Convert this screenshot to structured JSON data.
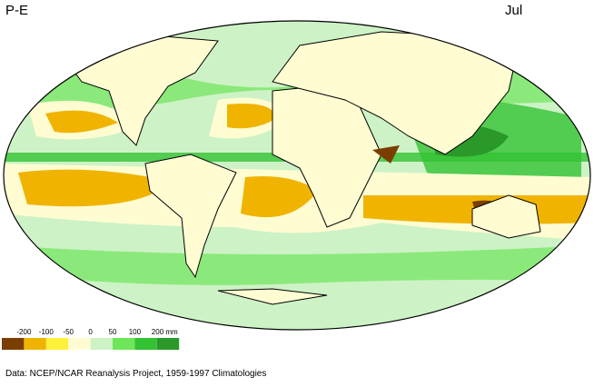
{
  "header": {
    "title": "P-E",
    "month": "Jul"
  },
  "legend": {
    "labels": [
      "-200",
      "-100",
      "-50",
      "0",
      "50",
      "100",
      "200 mm"
    ],
    "colors": [
      "#7a3f00",
      "#f0b400",
      "#fff03a",
      "#fffcd2",
      "#cdf2c6",
      "#6ee65a",
      "#33c233",
      "#2a992a"
    ]
  },
  "footer": "Data:  NCEP/NCAR Reanalysis Project, 1959-1997 Climatologies"
}
